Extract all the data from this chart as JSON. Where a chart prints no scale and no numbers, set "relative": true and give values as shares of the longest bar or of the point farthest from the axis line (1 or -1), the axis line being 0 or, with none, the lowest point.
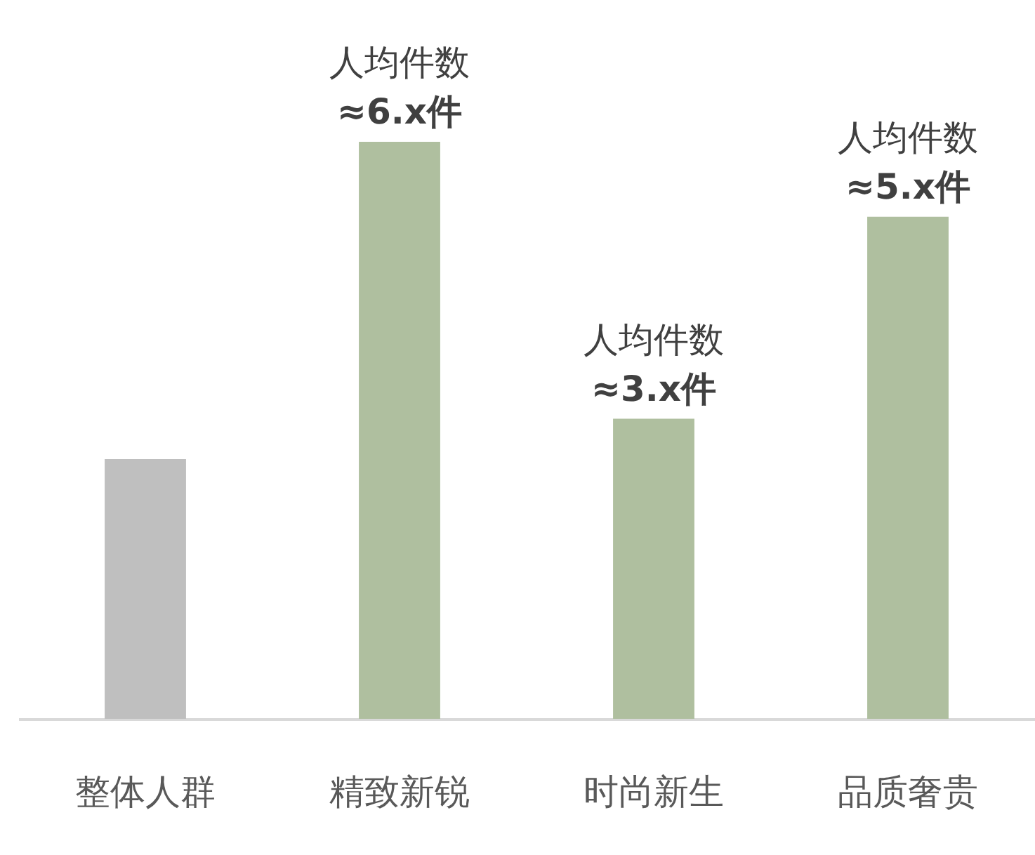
{
  "chart_data": {
    "type": "bar",
    "relative": true,
    "categories": [
      "整体人群",
      "精致新锐",
      "时尚新生",
      "品质奢贵"
    ],
    "values": [
      0.45,
      1,
      0.52,
      0.87
    ],
    "colors": [
      "#bfbfbf",
      "#afbf9f",
      "#afbf9f",
      "#afbf9f"
    ],
    "annotations": [
      {
        "text": "人均件数",
        "x": "精致新锐",
        "y": 1
      },
      {
        "text": "≈6.x件",
        "x": "精致新锐",
        "y": 1
      },
      {
        "text": "人均件数",
        "x": "时尚新生",
        "y": 0.52
      },
      {
        "text": "≈3.x件",
        "x": "时尚新生",
        "y": 0.52
      },
      {
        "text": "人均件数",
        "x": "品质奢贵",
        "y": 0.87
      },
      {
        "text": "≈5.x件",
        "x": "品质奢贵",
        "y": 0.87
      }
    ]
  }
}
